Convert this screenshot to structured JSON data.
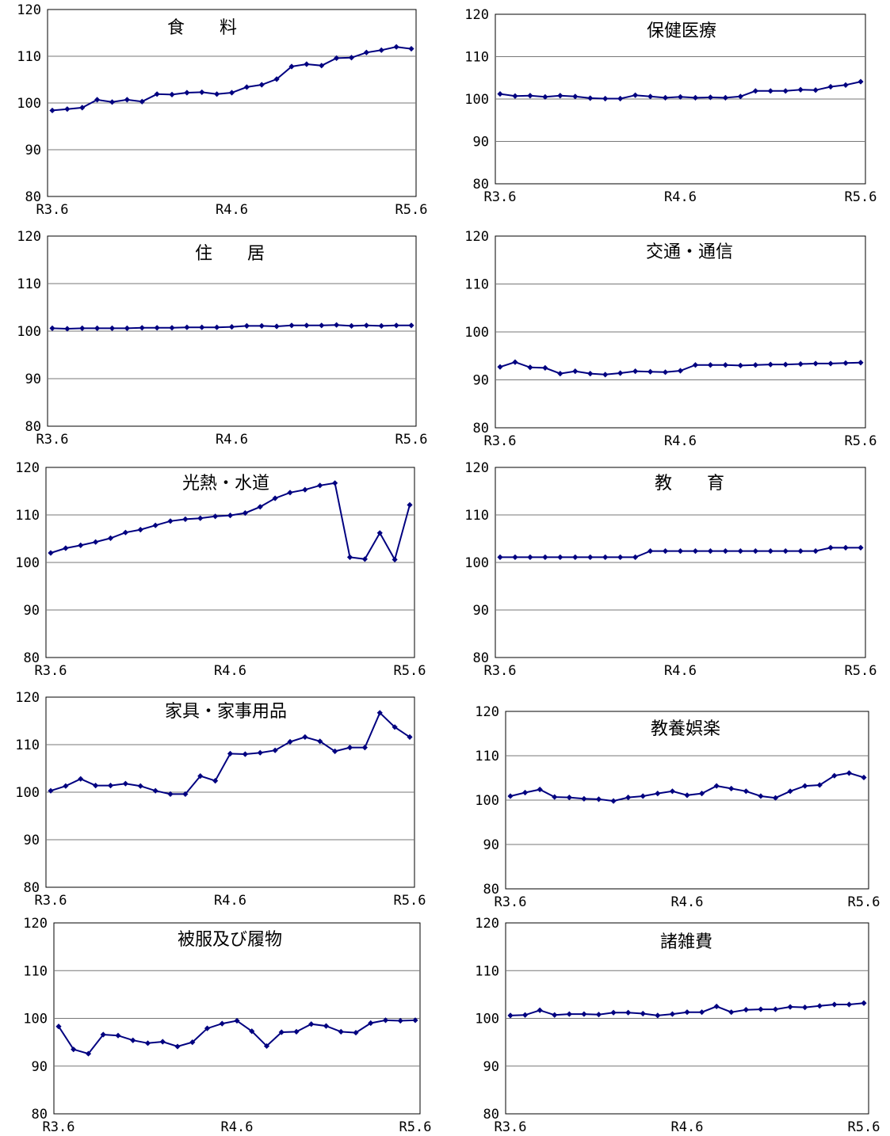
{
  "chart_data": [
    {
      "type": "line",
      "title": "食　　料",
      "x_start": "R3.6",
      "x_mid": "R4.6",
      "x_end": "R5.6",
      "ylim": [
        80,
        120
      ],
      "yticks": [
        "80",
        "90",
        "100",
        "110",
        "120"
      ],
      "grid": true,
      "color": "#000080",
      "values": [
        98.4,
        98.7,
        99.0,
        100.7,
        100.2,
        100.7,
        100.3,
        101.9,
        101.8,
        102.2,
        102.3,
        101.9,
        102.2,
        103.4,
        103.9,
        105.1,
        107.8,
        108.3,
        108.0,
        109.6,
        109.7,
        110.8,
        111.3,
        112.0,
        111.6
      ]
    },
    {
      "type": "line",
      "title": "保健医療",
      "x_start": "R3.6",
      "x_mid": "R4.6",
      "x_end": "R5.6",
      "ylim": [
        80,
        120
      ],
      "yticks": [
        "80",
        "90",
        "100",
        "110",
        "120"
      ],
      "grid": true,
      "color": "#000080",
      "values": [
        101.2,
        100.7,
        100.8,
        100.5,
        100.8,
        100.6,
        100.2,
        100.1,
        100.1,
        100.9,
        100.6,
        100.3,
        100.5,
        100.3,
        100.4,
        100.3,
        100.6,
        101.9,
        101.9,
        101.9,
        102.2,
        102.1,
        102.9,
        103.3,
        104.1
      ]
    },
    {
      "type": "line",
      "title": "住　　居",
      "x_start": "R3.6",
      "x_mid": "R4.6",
      "x_end": "R5.6",
      "ylim": [
        80,
        120
      ],
      "yticks": [
        "80",
        "90",
        "100",
        "110",
        "120"
      ],
      "grid": true,
      "color": "#000080",
      "values": [
        100.6,
        100.5,
        100.6,
        100.6,
        100.6,
        100.6,
        100.7,
        100.7,
        100.7,
        100.8,
        100.8,
        100.8,
        100.9,
        101.1,
        101.1,
        101.0,
        101.2,
        101.2,
        101.2,
        101.3,
        101.1,
        101.2,
        101.1,
        101.2,
        101.2
      ]
    },
    {
      "type": "line",
      "title": "交通・通信",
      "x_start": "R3.6",
      "x_mid": "R4.6",
      "x_end": "R5.6",
      "ylim": [
        80,
        120
      ],
      "yticks": [
        "80",
        "90",
        "100",
        "110",
        "120"
      ],
      "grid": true,
      "color": "#000080",
      "values": [
        92.7,
        93.7,
        92.6,
        92.5,
        91.3,
        91.8,
        91.3,
        91.1,
        91.4,
        91.8,
        91.7,
        91.6,
        91.9,
        93.1,
        93.1,
        93.1,
        93.0,
        93.1,
        93.2,
        93.2,
        93.3,
        93.4,
        93.4,
        93.5,
        93.6
      ]
    },
    {
      "type": "line",
      "title": "光熱・水道",
      "x_start": "R3.6",
      "x_mid": "R4.6",
      "x_end": "R5.6",
      "ylim": [
        80,
        120
      ],
      "yticks": [
        "80",
        "90",
        "100",
        "110",
        "120"
      ],
      "grid": true,
      "color": "#000080",
      "values": [
        102.0,
        103.0,
        103.6,
        104.3,
        105.1,
        106.3,
        106.9,
        107.8,
        108.7,
        109.1,
        109.3,
        109.7,
        109.9,
        110.4,
        111.7,
        113.5,
        114.7,
        115.3,
        116.2,
        116.7,
        101.1,
        100.7,
        106.2,
        100.6,
        112.1
      ]
    },
    {
      "type": "line",
      "title": "教　　育",
      "x_start": "R3.6",
      "x_mid": "R4.6",
      "x_end": "R5.6",
      "ylim": [
        80,
        120
      ],
      "yticks": [
        "80",
        "90",
        "100",
        "110",
        "120"
      ],
      "grid": true,
      "color": "#000080",
      "values": [
        101.1,
        101.1,
        101.1,
        101.1,
        101.1,
        101.1,
        101.1,
        101.1,
        101.1,
        101.1,
        102.4,
        102.4,
        102.4,
        102.4,
        102.4,
        102.4,
        102.4,
        102.4,
        102.4,
        102.4,
        102.4,
        102.4,
        103.1,
        103.1,
        103.1
      ]
    },
    {
      "type": "line",
      "title": "家具・家事用品",
      "x_start": "R3.6",
      "x_mid": "R4.6",
      "x_end": "R5.6",
      "ylim": [
        80,
        120
      ],
      "yticks": [
        "80",
        "90",
        "100",
        "110",
        "120"
      ],
      "grid": true,
      "color": "#000080",
      "values": [
        100.3,
        101.3,
        102.8,
        101.4,
        101.4,
        101.8,
        101.3,
        100.3,
        99.6,
        99.6,
        103.4,
        102.4,
        108.1,
        108.0,
        108.3,
        108.8,
        110.6,
        111.6,
        110.7,
        108.6,
        109.4,
        109.4,
        116.7,
        113.7,
        111.6
      ]
    },
    {
      "type": "line",
      "title": "教養娯楽",
      "x_start": "R3.6",
      "x_mid": "R4.6",
      "x_end": "R5.6",
      "ylim": [
        80,
        120
      ],
      "yticks": [
        "80",
        "90",
        "100",
        "110",
        "120"
      ],
      "grid": true,
      "color": "#000080",
      "values": [
        100.9,
        101.7,
        102.4,
        100.7,
        100.6,
        100.3,
        100.2,
        99.8,
        100.6,
        100.9,
        101.5,
        102.0,
        101.1,
        101.5,
        103.2,
        102.6,
        102.0,
        100.9,
        100.5,
        102.0,
        103.2,
        103.4,
        105.5,
        106.1,
        105.1
      ]
    },
    {
      "type": "line",
      "title": "被服及び履物",
      "x_start": "R3.6",
      "x_mid": "R4.6",
      "x_end": "R5.6",
      "ylim": [
        80,
        120
      ],
      "yticks": [
        "80",
        "90",
        "100",
        "110",
        "120"
      ],
      "grid": true,
      "color": "#000080",
      "values": [
        98.3,
        93.5,
        92.6,
        96.6,
        96.4,
        95.4,
        94.8,
        95.1,
        94.1,
        95.0,
        97.9,
        98.9,
        99.5,
        97.3,
        94.2,
        97.1,
        97.2,
        98.8,
        98.4,
        97.2,
        97.0,
        99.0,
        99.6,
        99.5,
        99.6
      ]
    },
    {
      "type": "line",
      "title": "諸雑費",
      "x_start": "R3.6",
      "x_mid": "R4.6",
      "x_end": "R5.6",
      "ylim": [
        80,
        120
      ],
      "yticks": [
        "80",
        "90",
        "100",
        "110",
        "120"
      ],
      "grid": true,
      "color": "#000080",
      "values": [
        100.6,
        100.7,
        101.7,
        100.7,
        100.9,
        100.9,
        100.8,
        101.2,
        101.2,
        101.0,
        100.6,
        100.9,
        101.3,
        101.3,
        102.5,
        101.3,
        101.8,
        101.9,
        101.9,
        102.4,
        102.3,
        102.6,
        102.9,
        102.9,
        103.2
      ]
    }
  ]
}
